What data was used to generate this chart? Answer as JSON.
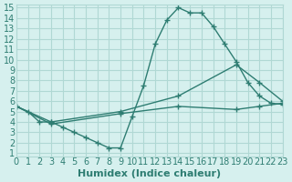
{
  "xlabel": "Humidex (Indice chaleur)",
  "background_color": "#d6f0ee",
  "line_color": "#2e7d72",
  "grid_color": "#b0d8d4",
  "xlim": [
    0,
    23
  ],
  "ylim": [
    1,
    15
  ],
  "xticks": [
    0,
    1,
    2,
    3,
    4,
    5,
    6,
    7,
    8,
    9,
    10,
    11,
    12,
    13,
    14,
    15,
    16,
    17,
    18,
    19,
    20,
    21,
    22,
    23
  ],
  "yticks": [
    1,
    2,
    3,
    4,
    5,
    6,
    7,
    8,
    9,
    10,
    11,
    12,
    13,
    14,
    15
  ],
  "line1_x": [
    0,
    1,
    2,
    3,
    4,
    5,
    6,
    7,
    8,
    9,
    10,
    11,
    12,
    13,
    14,
    15,
    16,
    17,
    18,
    19,
    20,
    21,
    22,
    23
  ],
  "line1_y": [
    5.5,
    5.0,
    4.0,
    4.0,
    3.5,
    3.0,
    2.5,
    2.0,
    1.5,
    1.5,
    4.5,
    7.5,
    11.5,
    13.8,
    15.0,
    14.5,
    14.5,
    13.2,
    11.5,
    9.8,
    7.8,
    6.5,
    5.8,
    5.7
  ],
  "line2_x": [
    0,
    3,
    9,
    14,
    19,
    21,
    23
  ],
  "line2_y": [
    5.5,
    4.0,
    5.0,
    6.5,
    9.5,
    7.8,
    6.0
  ],
  "line3_x": [
    0,
    3,
    9,
    14,
    19,
    21,
    23
  ],
  "line3_y": [
    5.5,
    3.8,
    4.8,
    5.5,
    5.2,
    5.5,
    5.8
  ],
  "tick_fontsize": 7,
  "xlabel_fontsize": 8
}
